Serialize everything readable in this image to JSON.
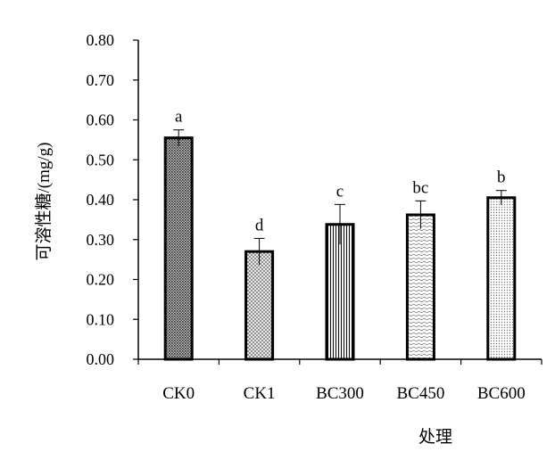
{
  "chart_data": {
    "type": "bar",
    "title": "",
    "xlabel": "处理",
    "ylabel": "可溶性糖/(mg/g)",
    "categories": [
      "CK0",
      "CK1",
      "BC300",
      "BC450",
      "BC600"
    ],
    "values": [
      0.555,
      0.27,
      0.338,
      0.362,
      0.405
    ],
    "errors": [
      0.02,
      0.033,
      0.05,
      0.035,
      0.018
    ],
    "significance_letters": [
      "a",
      "d",
      "c",
      "bc",
      "b"
    ],
    "ylim": [
      0,
      0.8
    ],
    "yticks": [
      "0.00",
      "0.10",
      "0.20",
      "0.30",
      "0.40",
      "0.50",
      "0.60",
      "0.70",
      "0.80"
    ],
    "grid": false,
    "legend": "none",
    "bar_patterns": [
      "dense-dark-dots",
      "light-crosshatch",
      "vertical-lines",
      "wavy-lines",
      "fine-dots"
    ],
    "colors": {
      "axis": "#000000",
      "bar_border": "#000000",
      "bar_fill": "#ffffff"
    }
  }
}
